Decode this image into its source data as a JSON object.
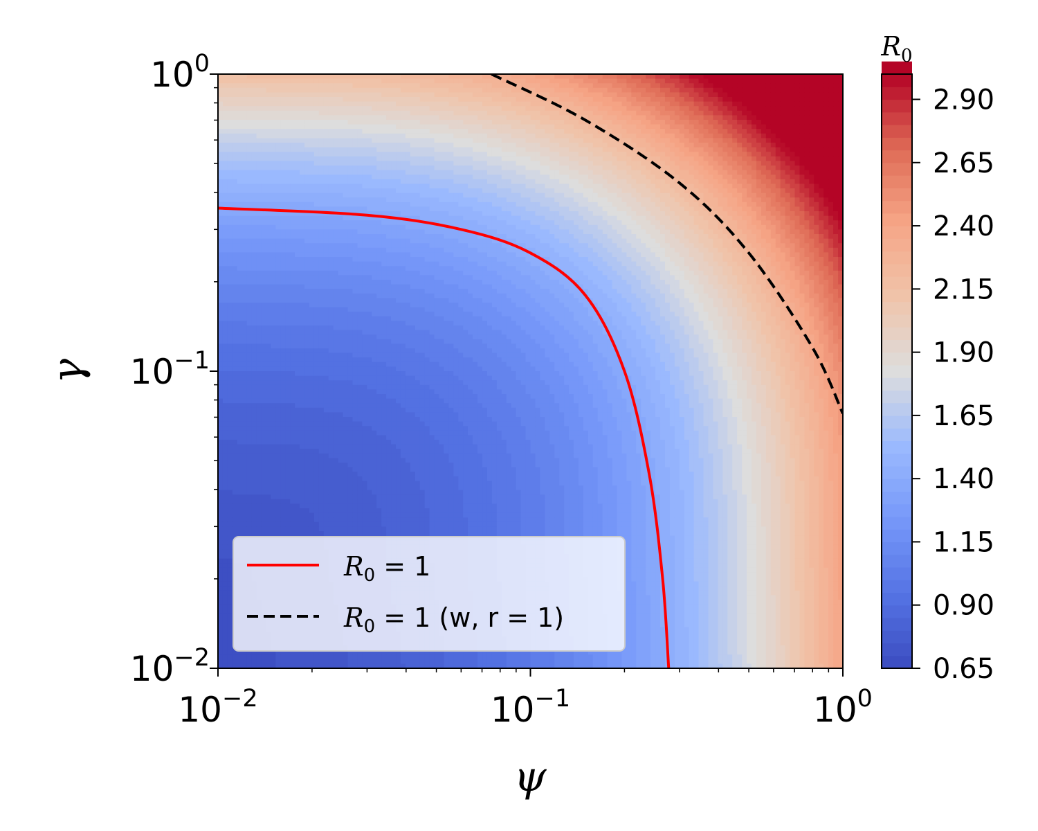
{
  "chart_data": {
    "type": "heatmap",
    "xlabel": "ψ",
    "ylabel": "γ",
    "x_scale": "log",
    "y_scale": "log",
    "xlim": [
      0.01,
      1
    ],
    "ylim": [
      0.01,
      1
    ],
    "x_ticks": [
      {
        "value": 0.01,
        "base": "10",
        "exp": "−2"
      },
      {
        "value": 0.1,
        "base": "10",
        "exp": "−1"
      },
      {
        "value": 1,
        "base": "10",
        "exp": "0"
      }
    ],
    "y_ticks": [
      {
        "value": 0.01,
        "base": "10",
        "exp": "−2"
      },
      {
        "value": 0.1,
        "base": "10",
        "exp": "−1"
      },
      {
        "value": 1,
        "base": "10",
        "exp": "0"
      }
    ],
    "colorbar": {
      "label": "R",
      "label_sub": "0",
      "min": 0.65,
      "max": 3.0,
      "colormap": "coolwarm",
      "ticks": [
        "0.65",
        "0.90",
        "1.15",
        "1.40",
        "1.65",
        "1.90",
        "2.15",
        "2.40",
        "2.65",
        "2.90"
      ]
    },
    "series": [
      {
        "name": "R0 = 1",
        "legend_text": "R",
        "legend_sub": "0",
        "legend_suffix": " = 1",
        "style": "solid",
        "color": "#ff0000",
        "points": [
          [
            0.01,
            0.354
          ],
          [
            0.03,
            0.335
          ],
          [
            0.06,
            0.3
          ],
          [
            0.1,
            0.25
          ],
          [
            0.15,
            0.18
          ],
          [
            0.2,
            0.1
          ],
          [
            0.24,
            0.045
          ],
          [
            0.265,
            0.02
          ],
          [
            0.277,
            0.01
          ]
        ]
      },
      {
        "name": "R0 = 1 (w, r = 1)",
        "legend_text": "R",
        "legend_sub": "0",
        "legend_suffix": " = 1 (w, r = 1)",
        "style": "dashed",
        "color": "#000000",
        "points": [
          [
            0.075,
            1.0
          ],
          [
            0.15,
            0.7
          ],
          [
            0.3,
            0.43
          ],
          [
            0.5,
            0.25
          ],
          [
            0.8,
            0.12
          ],
          [
            1.0,
            0.072
          ]
        ]
      }
    ],
    "legend_position": "lower-left",
    "grid": false
  }
}
